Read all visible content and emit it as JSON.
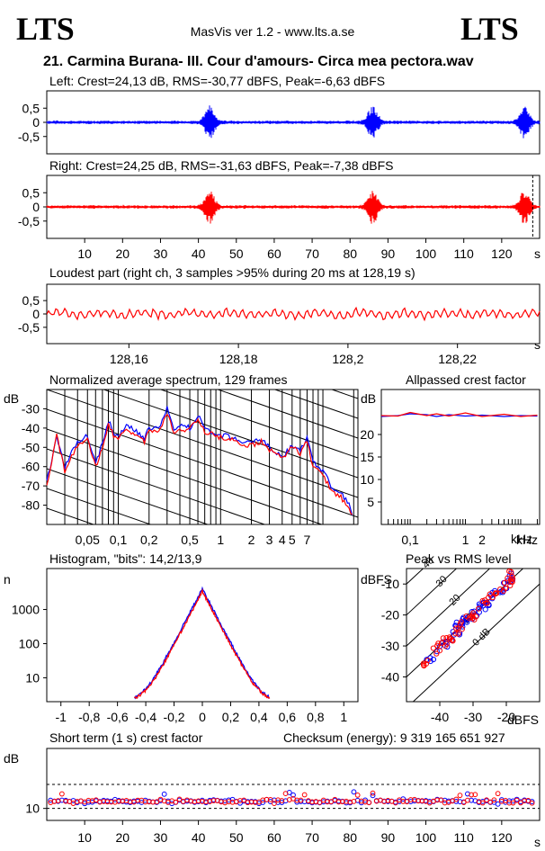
{
  "header": {
    "logo_left": "LTS",
    "logo_right": "LTS",
    "app": "MasVis ver 1.2 - www.lts.a.se",
    "track": "21. Carmina Burana- III. Cour d'amours- Circa mea pectora.wav"
  },
  "colors": {
    "left": "#0000ff",
    "right": "#ff0000",
    "axis": "#000000"
  },
  "chart_data": [
    {
      "type": "line",
      "title": "Left: Crest=24,13 dB, RMS=-30,77 dBFS, Peak=-6,63 dBFS",
      "series": [
        {
          "color": "#0000ff"
        }
      ],
      "ylim": [
        -1,
        1
      ],
      "yticks": [
        "0,5",
        "0",
        "-0,5"
      ],
      "xlim": [
        0,
        130
      ],
      "bursts_s": [
        43,
        86,
        126
      ]
    },
    {
      "type": "line",
      "title": "Right: Crest=24,25 dB, RMS=-31,63 dBFS, Peak=-7,38 dBFS",
      "series": [
        {
          "color": "#ff0000"
        }
      ],
      "ylim": [
        -1,
        1
      ],
      "yticks": [
        "0,5",
        "0",
        "-0,5"
      ],
      "xlim": [
        0,
        130
      ],
      "xticks": [
        "10",
        "20",
        "30",
        "40",
        "50",
        "60",
        "70",
        "80",
        "90",
        "100",
        "110",
        "120"
      ],
      "xunit": "s",
      "marker_s": 128.19
    },
    {
      "type": "line",
      "title": "Loudest part (right ch, 3 samples >95% during 20 ms at 128,19 s)",
      "series": [
        {
          "color": "#ff0000"
        }
      ],
      "ylim": [
        -1,
        1
      ],
      "yticks": [
        "0,5",
        "0",
        "-0,5"
      ],
      "xlim": [
        128.145,
        128.235
      ],
      "xticks": [
        "128,16",
        "128,18",
        "128,2",
        "128,22"
      ],
      "xunit": "s"
    },
    {
      "type": "line",
      "title": "Normalized average spectrum, 129 frames",
      "ylabel": "dB",
      "ylim": [
        -90,
        -20
      ],
      "yticks": [
        "-30",
        "-40",
        "-50",
        "-60",
        "-70",
        "-80"
      ],
      "xscale": "log",
      "xlim": [
        0.02,
        22
      ],
      "xticks": [
        "0,05",
        "0,1",
        "0,2",
        "0,5",
        "1",
        "2",
        "3",
        "4",
        "5",
        "7"
      ],
      "xunit": "kHz",
      "series": [
        {
          "color": "#0000ff",
          "x": [
            0.02,
            0.025,
            0.03,
            0.035,
            0.04,
            0.05,
            0.06,
            0.07,
            0.08,
            0.09,
            0.1,
            0.12,
            0.15,
            0.18,
            0.2,
            0.25,
            0.3,
            0.35,
            0.4,
            0.5,
            0.6,
            0.7,
            0.8,
            1,
            1.2,
            1.5,
            2,
            2.5,
            3,
            4,
            5,
            6,
            7,
            8,
            10,
            12,
            15,
            18,
            20
          ],
          "y": [
            -68,
            -45,
            -60,
            -52,
            -48,
            -44,
            -58,
            -48,
            -36,
            -42,
            -45,
            -38,
            -42,
            -46,
            -40,
            -40,
            -30,
            -42,
            -38,
            -40,
            -33,
            -40,
            -42,
            -44,
            -44,
            -47,
            -48,
            -46,
            -50,
            -55,
            -49,
            -52,
            -44,
            -58,
            -62,
            -70,
            -74,
            -80,
            -86
          ]
        },
        {
          "color": "#ff0000",
          "x": [
            0.02,
            0.025,
            0.03,
            0.035,
            0.04,
            0.05,
            0.06,
            0.07,
            0.08,
            0.09,
            0.1,
            0.12,
            0.15,
            0.18,
            0.2,
            0.25,
            0.3,
            0.35,
            0.4,
            0.5,
            0.6,
            0.7,
            0.8,
            1,
            1.2,
            1.5,
            2,
            2.5,
            3,
            4,
            5,
            6,
            7,
            8,
            10,
            12,
            15,
            18,
            20
          ],
          "y": [
            -70,
            -44,
            -62,
            -54,
            -50,
            -46,
            -60,
            -50,
            -38,
            -44,
            -46,
            -40,
            -44,
            -47,
            -42,
            -41,
            -32,
            -43,
            -40,
            -41,
            -35,
            -42,
            -43,
            -45,
            -45,
            -48,
            -49,
            -47,
            -51,
            -56,
            -50,
            -53,
            -47,
            -60,
            -64,
            -72,
            -76,
            -82,
            -88
          ]
        }
      ]
    },
    {
      "type": "line",
      "title": "Allpassed crest factor",
      "ylabel": "dB",
      "ylim": [
        0,
        30
      ],
      "yticks": [
        "20",
        "15",
        "10",
        "5"
      ],
      "xscale": "log",
      "xlim": [
        0.03,
        22
      ],
      "xticks": [
        "0,1",
        "1",
        "2",
        "kHz"
      ],
      "series": [
        {
          "color": "#0000ff",
          "x": [
            0.03,
            0.06,
            0.1,
            0.2,
            0.3,
            0.5,
            1,
            2,
            5,
            10,
            20
          ],
          "y": [
            24.0,
            24.2,
            24.6,
            24.4,
            24.0,
            24.4,
            24.1,
            24.3,
            24.0,
            24.2,
            24.1
          ]
        },
        {
          "color": "#ff0000",
          "x": [
            0.03,
            0.06,
            0.1,
            0.2,
            0.3,
            0.5,
            1,
            2,
            5,
            10,
            20
          ],
          "y": [
            24.2,
            24.1,
            24.9,
            24.2,
            24.6,
            24.1,
            24.8,
            24.0,
            24.5,
            24.0,
            24.3
          ]
        }
      ]
    },
    {
      "type": "line",
      "title": "Histogram, \"bits\": 14,2/13,9",
      "ylabel": "n",
      "yscale": "log",
      "yticks": [
        "1000",
        "100",
        "10"
      ],
      "xlim": [
        -1.1,
        1.1
      ],
      "xticks": [
        "-1",
        "-0,8",
        "-0,6",
        "-0,4",
        "-0,2",
        "0",
        "0,2",
        "0,4",
        "0,6",
        "0,8",
        "1"
      ]
    },
    {
      "type": "scatter",
      "title": "Peak vs RMS level",
      "ylabel": "dBFS",
      "xlabel": "dBFS",
      "xlim": [
        -50,
        -10
      ],
      "ylim": [
        -48,
        -5
      ],
      "xticks": [
        "-40",
        "-30",
        "-20"
      ],
      "yticks": [
        "-10",
        "-20",
        "-30",
        "-40"
      ],
      "diag_labels": [
        "40",
        "30",
        "20",
        "10",
        "0 dB"
      ]
    },
    {
      "type": "scatter",
      "title": "Short term (1 s) crest factor",
      "checksum": "Checksum (energy):   9 319 165 651 927",
      "ylabel": "dB",
      "ylim": [
        5,
        35
      ],
      "yticks": [
        "10"
      ],
      "xlim": [
        0,
        130
      ],
      "xticks": [
        "10",
        "20",
        "30",
        "40",
        "50",
        "60",
        "70",
        "80",
        "90",
        "100",
        "110",
        "120"
      ],
      "xunit": "s"
    }
  ]
}
